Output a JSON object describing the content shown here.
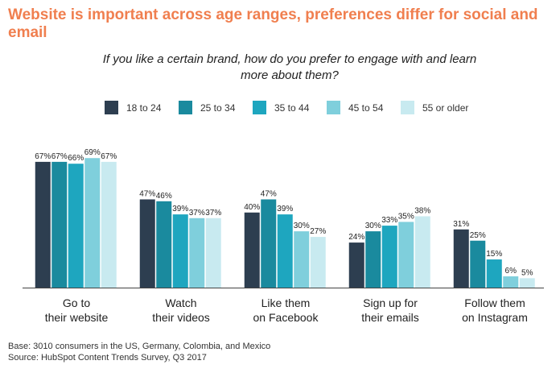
{
  "chart_data": {
    "type": "bar",
    "title": "Website is important across age ranges, preferences differ for social and email",
    "subtitle": "If you like a certain brand, how do you prefer to engage with and learn more about them?",
    "categories": [
      [
        "Go to",
        "their website"
      ],
      [
        "Watch",
        "their videos"
      ],
      [
        "Like them",
        "on Facebook"
      ],
      [
        "Sign up for",
        "their emails"
      ],
      [
        "Follow them",
        "on Instagram"
      ]
    ],
    "series": [
      {
        "name": "18 to 24",
        "color": "#2d3e50",
        "values": [
          67,
          47,
          40,
          24,
          31
        ]
      },
      {
        "name": "25 to 34",
        "color": "#1a8a9e",
        "values": [
          67,
          46,
          47,
          30,
          25
        ]
      },
      {
        "name": "35 to 44",
        "color": "#1ea6bf",
        "values": [
          66,
          39,
          39,
          33,
          15
        ]
      },
      {
        "name": "45 to 54",
        "color": "#7fcfdc",
        "values": [
          69,
          37,
          30,
          35,
          6
        ]
      },
      {
        "name": "55 or older",
        "color": "#c8eaf0",
        "values": [
          67,
          37,
          27,
          38,
          5
        ]
      }
    ],
    "value_suffix": "%",
    "ylim": [
      0,
      70
    ],
    "legend_position": "top"
  },
  "notes": {
    "base": "Base: 3010 consumers in the US, Germany, Colombia, and Mexico",
    "source": "Source: HubSpot Content Trends Survey, Q3 2017"
  }
}
